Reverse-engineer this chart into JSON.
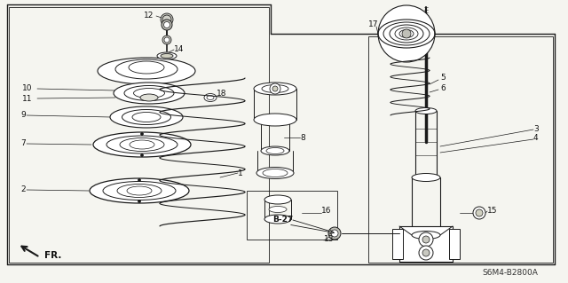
{
  "bg_color": "#f5f5f0",
  "line_color": "#1a1a1a",
  "text_color": "#111111",
  "fig_width": 6.4,
  "fig_height": 3.19,
  "dpi": 100,
  "diagram_code": "S6M4-B2800A"
}
